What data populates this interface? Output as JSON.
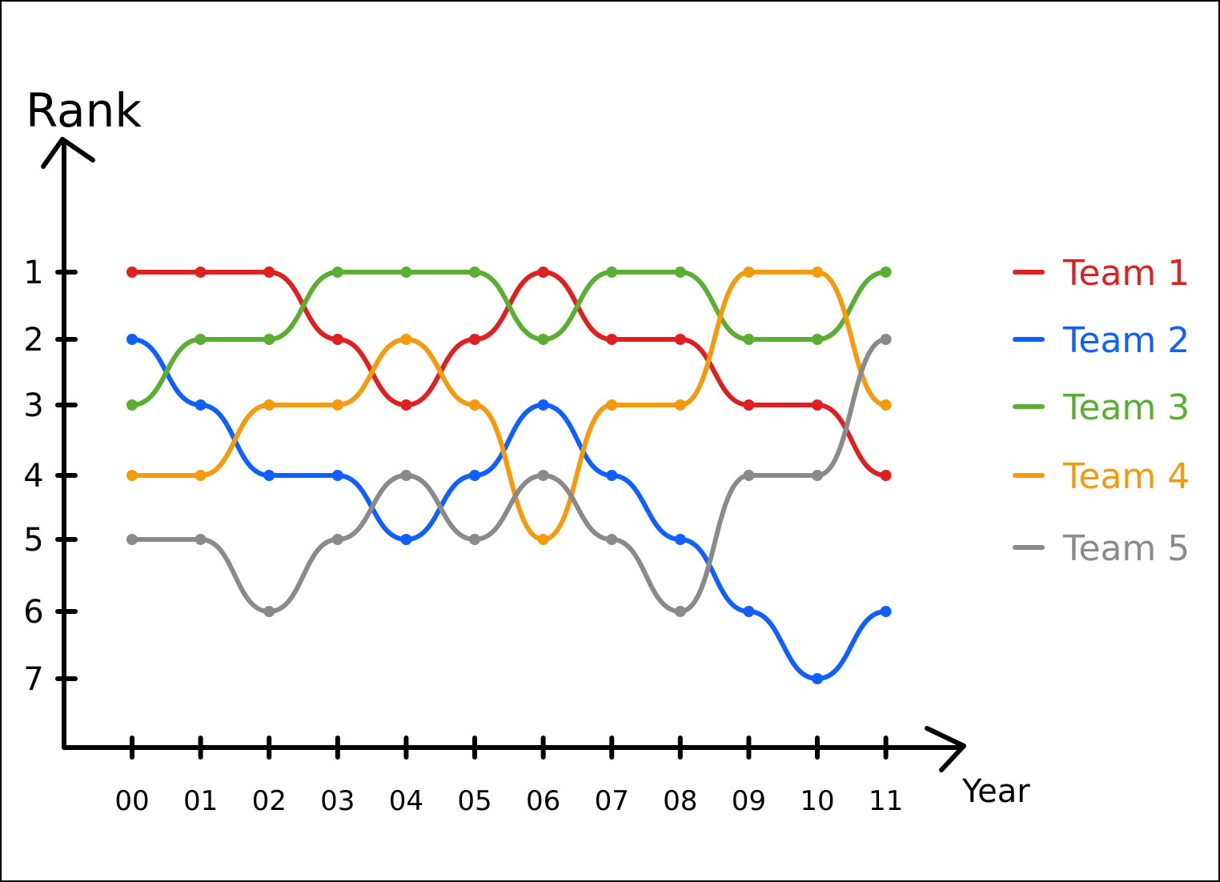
{
  "chart_data": {
    "type": "line",
    "title": "",
    "xlabel": "Year",
    "ylabel": "Rank",
    "categories": [
      "00",
      "01",
      "02",
      "03",
      "04",
      "05",
      "06",
      "07",
      "08",
      "09",
      "10",
      "11"
    ],
    "y_ticks": [
      "1",
      "2",
      "3",
      "4",
      "5",
      "6",
      "7"
    ],
    "y_reversed": true,
    "ylim": [
      1,
      7
    ],
    "legend_position": "right",
    "grid": false,
    "series": [
      {
        "name": "Team 1",
        "color": "#e02020",
        "values": [
          1,
          1,
          1,
          2,
          3,
          2,
          1,
          2,
          2,
          3,
          3,
          4
        ]
      },
      {
        "name": "Team 2",
        "color": "#1060ff",
        "values": [
          2,
          3,
          4,
          4,
          5,
          4,
          3,
          4,
          5,
          6,
          7,
          6
        ]
      },
      {
        "name": "Team 3",
        "color": "#5aae32",
        "values": [
          3,
          2,
          2,
          1,
          1,
          1,
          2,
          1,
          1,
          2,
          2,
          1
        ]
      },
      {
        "name": "Team 4",
        "color": "#f59a0c",
        "values": [
          4,
          4,
          3,
          3,
          2,
          3,
          5,
          3,
          3,
          1,
          1,
          3
        ]
      },
      {
        "name": "Team 5",
        "color": "#8a8a8a",
        "values": [
          5,
          5,
          6,
          5,
          4,
          5,
          4,
          5,
          6,
          4,
          4,
          2
        ]
      }
    ]
  }
}
